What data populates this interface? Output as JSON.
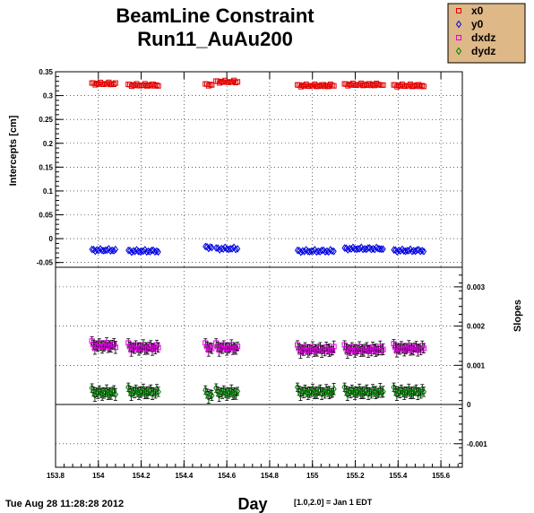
{
  "title_line1": "BeamLine Constraint",
  "title_line2": "Run11_AuAu200",
  "footer": {
    "timestamp": "Tue Aug 28 11:28:28 2012",
    "xlabel": "Day",
    "note": "[1.0,2.0] = Jan 1 EDT"
  },
  "legend": [
    {
      "name": "x0",
      "color": "#e00000",
      "marker": "square"
    },
    {
      "name": "y0",
      "color": "#0000e0",
      "marker": "diamond"
    },
    {
      "name": "dxdz",
      "color": "#e000e0",
      "marker": "square"
    },
    {
      "name": "dydz",
      "color": "#008000",
      "marker": "diamond"
    }
  ],
  "chart_data": [
    {
      "type": "scatter",
      "panel": "top",
      "ylabel": "Intercepts [cm]",
      "xlim": [
        153.8,
        155.7
      ],
      "ylim": [
        -0.06,
        0.35
      ],
      "grid": true,
      "x_ticks": [
        "153.8",
        "154",
        "154.2",
        "154.4",
        "154.6",
        "154.8",
        "155",
        "155.2",
        "155.4",
        "155.6"
      ],
      "y_ticks": [
        "-0.05",
        "0",
        "0.05",
        "0.1",
        "0.15",
        "0.2",
        "0.25",
        "0.3",
        "0.35"
      ],
      "series": [
        {
          "name": "x0",
          "color": "#e00000",
          "marker": "square",
          "segments": [
            [
              153.97,
              154.08,
              0.325
            ],
            [
              154.14,
              154.28,
              0.322
            ],
            [
              154.5,
              154.53,
              0.323
            ],
            [
              154.55,
              154.65,
              0.329
            ],
            [
              154.93,
              155.1,
              0.321
            ],
            [
              155.15,
              155.33,
              0.323
            ],
            [
              155.38,
              155.52,
              0.321
            ]
          ]
        },
        {
          "name": "y0",
          "color": "#0000e0",
          "marker": "diamond",
          "segments": [
            [
              153.97,
              154.08,
              -0.024
            ],
            [
              154.14,
              154.28,
              -0.026
            ],
            [
              154.5,
              154.53,
              -0.018
            ],
            [
              154.55,
              154.65,
              -0.021
            ],
            [
              154.93,
              155.1,
              -0.026
            ],
            [
              155.15,
              155.33,
              -0.021
            ],
            [
              155.38,
              155.52,
              -0.025
            ]
          ]
        }
      ]
    },
    {
      "type": "scatter",
      "panel": "bottom",
      "ylabel": "Slopes",
      "xlim": [
        153.8,
        155.7
      ],
      "ylim": [
        -0.0016,
        0.0035
      ],
      "grid": true,
      "zero_line": true,
      "y_ticks": [
        "-0.001",
        "0",
        "0.001",
        "0.002",
        "0.003"
      ],
      "series": [
        {
          "name": "dxdz",
          "color": "#e000e0",
          "marker": "square",
          "error": 0.0001,
          "segments": [
            [
              153.97,
              154.08,
              0.0015
            ],
            [
              154.14,
              154.28,
              0.00145
            ],
            [
              154.5,
              154.53,
              0.00145
            ],
            [
              154.55,
              154.65,
              0.00145
            ],
            [
              154.93,
              155.1,
              0.0014
            ],
            [
              155.15,
              155.33,
              0.0014
            ],
            [
              155.38,
              155.52,
              0.00143
            ]
          ]
        },
        {
          "name": "dydz",
          "color": "#008000",
          "marker": "diamond",
          "error": 0.0001,
          "segments": [
            [
              153.97,
              154.08,
              0.0003
            ],
            [
              154.14,
              154.28,
              0.00032
            ],
            [
              154.5,
              154.53,
              0.00025
            ],
            [
              154.55,
              154.65,
              0.0003
            ],
            [
              154.93,
              155.1,
              0.00032
            ],
            [
              155.15,
              155.33,
              0.00032
            ],
            [
              155.38,
              155.52,
              0.00032
            ]
          ]
        }
      ]
    }
  ]
}
